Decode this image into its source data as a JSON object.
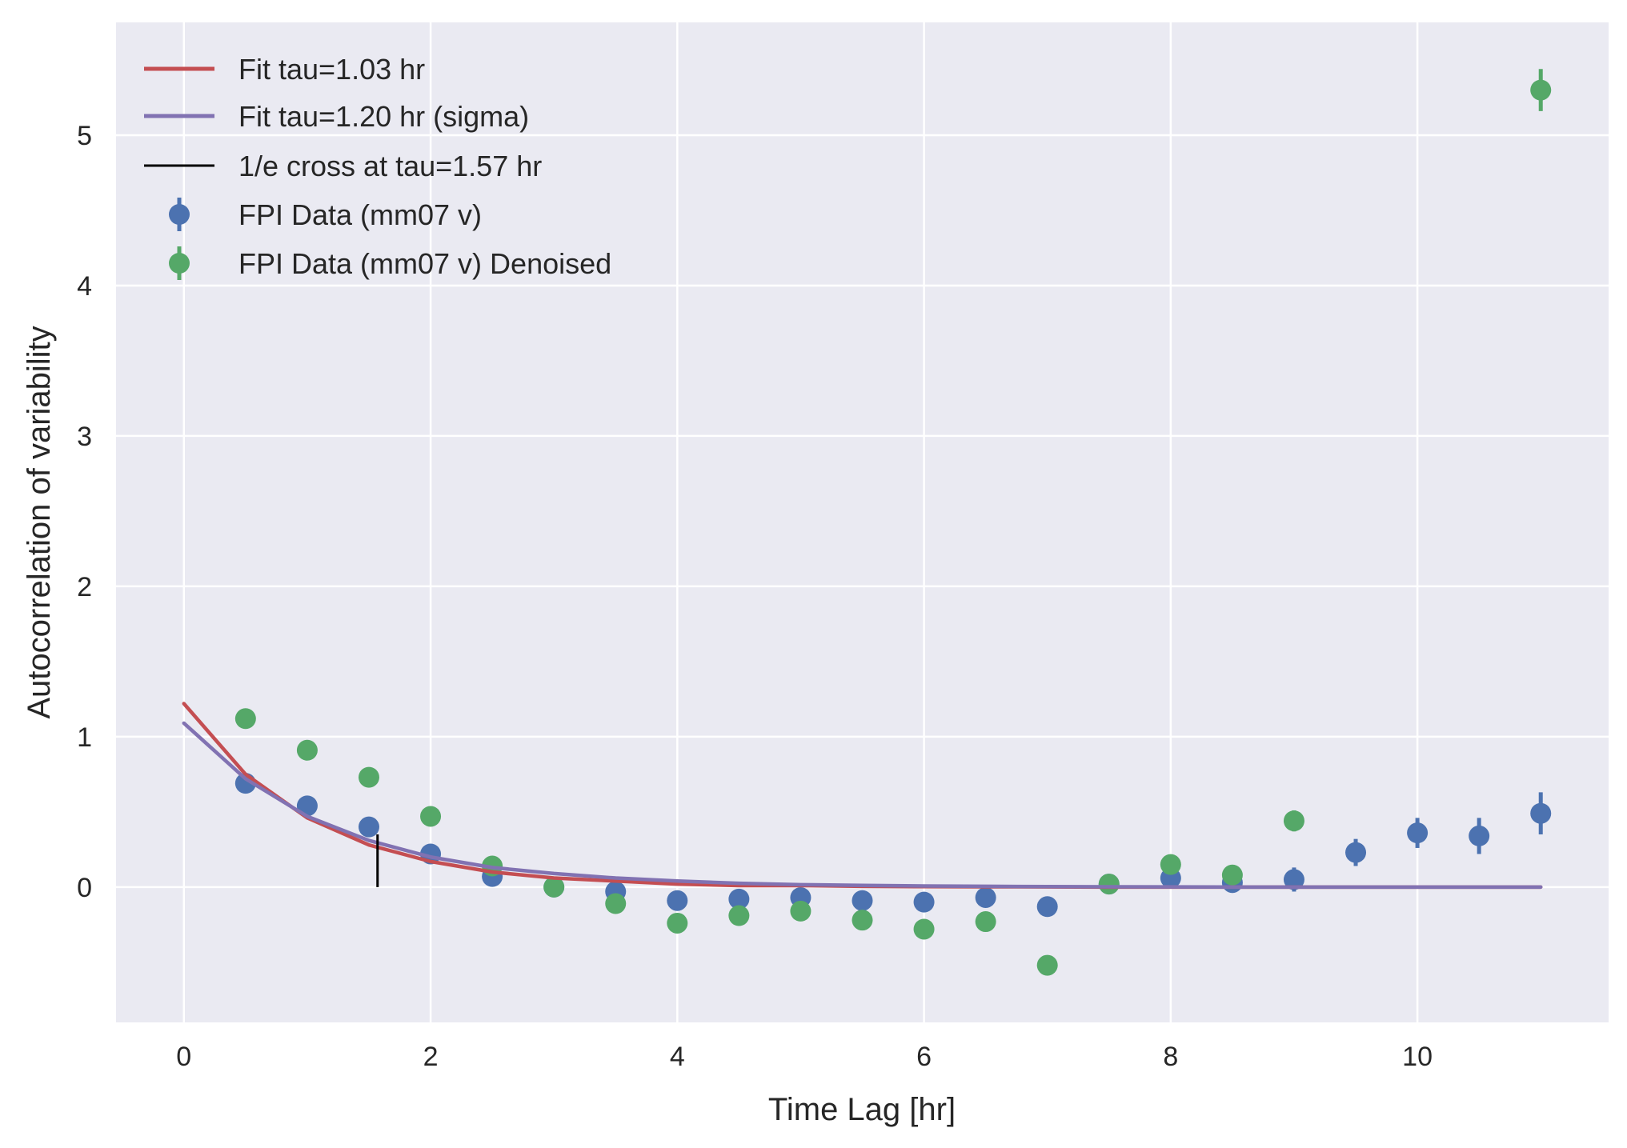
{
  "chart_data": {
    "type": "scatter",
    "title": "",
    "xlabel": "Time Lag [hr]",
    "ylabel": "Autocorrelation of variability",
    "xlim": [
      -0.55,
      11.55
    ],
    "ylim": [
      -0.9,
      5.75
    ],
    "xticks": [
      0,
      2,
      4,
      6,
      8,
      10
    ],
    "yticks": [
      0,
      1,
      2,
      3,
      4,
      5
    ],
    "grid": true,
    "legend_position": "top-left",
    "style": {
      "background": "#EAEAF2",
      "grid_color": "#FFFFFF"
    },
    "series": [
      {
        "name": "Fit tau=1.03 hr",
        "kind": "line",
        "color": "#C44E52",
        "x": [
          0,
          0.5,
          1,
          1.5,
          2,
          2.5,
          3,
          3.5,
          4,
          4.5,
          5,
          5.5,
          6,
          6.5,
          7,
          7.5,
          8,
          8.5,
          9,
          9.5,
          10,
          10.5,
          11
        ],
        "y": [
          1.22,
          0.75,
          0.46,
          0.28,
          0.17,
          0.1,
          0.06,
          0.04,
          0.02,
          0.01,
          0.01,
          0.005,
          0.003,
          0.002,
          0.001,
          0,
          0,
          0,
          0,
          0,
          0,
          0,
          0
        ]
      },
      {
        "name": "Fit tau=1.20 hr (sigma)",
        "kind": "line",
        "color": "#8172B2",
        "x": [
          0,
          0.5,
          1,
          1.5,
          2,
          2.5,
          3,
          3.5,
          4,
          4.5,
          5,
          5.5,
          6,
          6.5,
          7,
          7.5,
          8,
          8.5,
          9,
          9.5,
          10,
          10.5,
          11
        ],
        "y": [
          1.09,
          0.72,
          0.47,
          0.31,
          0.2,
          0.13,
          0.09,
          0.06,
          0.04,
          0.025,
          0.016,
          0.011,
          0.007,
          0.005,
          0.003,
          0.002,
          0.001,
          0,
          0,
          0,
          0,
          0,
          0
        ]
      },
      {
        "name": "1/e cross at tau=1.57 hr",
        "kind": "vline",
        "color": "#000000",
        "x": [
          1.57,
          1.57
        ],
        "y": [
          0,
          0.35
        ]
      },
      {
        "name": "FPI Data (mm07 v)",
        "kind": "errorbar",
        "color": "#4C72B0",
        "x": [
          0.5,
          1,
          1.5,
          2,
          2.5,
          3,
          3.5,
          4,
          4.5,
          5,
          5.5,
          6,
          6.5,
          7,
          7.5,
          8,
          8.5,
          9,
          9.5,
          10,
          10.5,
          11
        ],
        "y": [
          0.69,
          0.54,
          0.4,
          0.22,
          0.07,
          0.0,
          -0.03,
          -0.09,
          -0.08,
          -0.07,
          -0.09,
          -0.1,
          -0.07,
          -0.13,
          0.02,
          0.06,
          0.03,
          0.05,
          0.23,
          0.36,
          0.34,
          0.49
        ],
        "yerr": [
          0.02,
          0.02,
          0.02,
          0.02,
          0.02,
          0.02,
          0.02,
          0.02,
          0.02,
          0.03,
          0.03,
          0.03,
          0.03,
          0.03,
          0.04,
          0.05,
          0.06,
          0.08,
          0.09,
          0.1,
          0.12,
          0.14
        ]
      },
      {
        "name": "FPI Data (mm07 v) Denoised",
        "kind": "errorbar",
        "color": "#55A868",
        "x": [
          0.5,
          1,
          1.5,
          2,
          2.5,
          3,
          3.5,
          4,
          4.5,
          5,
          5.5,
          6,
          6.5,
          7,
          7.5,
          8,
          8.5,
          9,
          11
        ],
        "y": [
          1.12,
          0.91,
          0.73,
          0.47,
          0.14,
          0.0,
          -0.11,
          -0.24,
          -0.19,
          -0.16,
          -0.22,
          -0.28,
          -0.23,
          -0.52,
          0.02,
          0.15,
          0.08,
          0.44,
          5.3
        ],
        "yerr": [
          0.02,
          0.02,
          0.02,
          0.02,
          0.02,
          0.02,
          0.02,
          0.02,
          0.02,
          0.02,
          0.02,
          0.02,
          0.02,
          0.02,
          0.03,
          0.04,
          0.05,
          0.07,
          0.14
        ]
      }
    ]
  }
}
